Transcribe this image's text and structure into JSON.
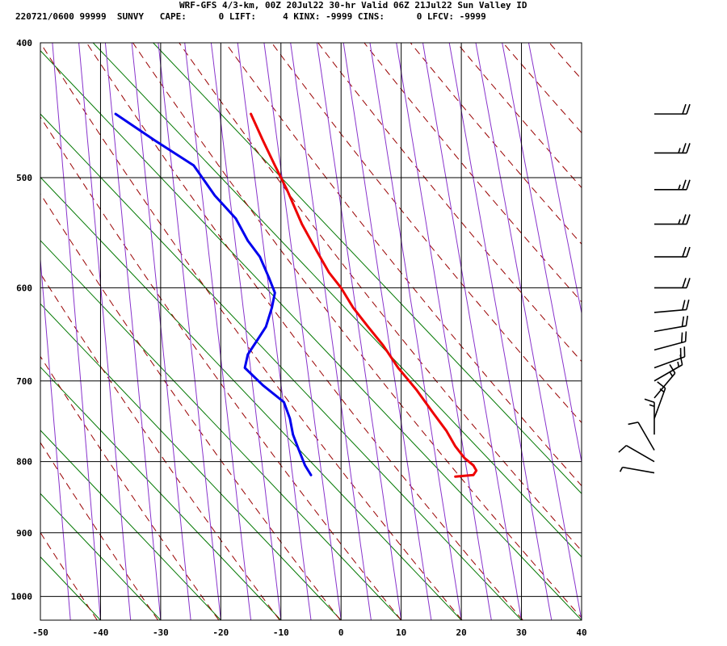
{
  "header": {
    "title_line": "WRF-GFS 4/3-km, 00Z 20Jul22 30-hr Valid 06Z 21Jul22 Sun Valley ID",
    "stats_line": "220721/0600 99999  SUNVY   CAPE:      0 LIFT:     4 KINX: -9999 CINS:      0 LFCV: -9999"
  },
  "chart_data": {
    "type": "line",
    "title": "WRF-GFS 4/3-km, 00Z 20Jul22 30-hr Valid 06Z 21Jul22 Sun Valley ID",
    "xlabel": "",
    "ylabel": "",
    "x_ticks": [
      "-50",
      "-40",
      "-30",
      "-20",
      "-10",
      "0",
      "10",
      "20",
      "30",
      "40"
    ],
    "y_ticks": [
      "400",
      "500",
      "600",
      "700",
      "800",
      "900",
      "1000"
    ],
    "xlim": [
      -50,
      40
    ],
    "ylim": [
      1040,
      400
    ],
    "y_scale": "log",
    "grid": true,
    "colors": {
      "temperature": "#ee0000",
      "dewpoint": "#0000ee",
      "dry_adiabat": "#990000",
      "moist_adiabat": "#8833cc",
      "isotherm_green": "#007700",
      "grid": "#000000"
    },
    "series": [
      {
        "key": "temperature",
        "points": [
          [
            -15,
            450
          ],
          [
            -13,
            470
          ],
          [
            -11,
            490
          ],
          [
            -9,
            510
          ],
          [
            -6.5,
            540
          ],
          [
            -4,
            565
          ],
          [
            -2,
            585
          ],
          [
            0,
            600
          ],
          [
            2,
            620
          ],
          [
            4.5,
            640
          ],
          [
            7,
            660
          ],
          [
            9.5,
            685
          ],
          [
            12.5,
            710
          ],
          [
            15.5,
            740
          ],
          [
            17.5,
            760
          ],
          [
            19,
            780
          ],
          [
            20.5,
            795
          ],
          [
            22,
            805
          ],
          [
            22.5,
            812
          ],
          [
            22,
            818
          ],
          [
            19,
            820
          ]
        ]
      },
      {
        "key": "dewpoint",
        "points": [
          [
            -37.5,
            450
          ],
          [
            -31,
            470
          ],
          [
            -24.5,
            490
          ],
          [
            -21,
            515
          ],
          [
            -17.5,
            535
          ],
          [
            -15.5,
            555
          ],
          [
            -13.5,
            570
          ],
          [
            -12,
            590
          ],
          [
            -11,
            605
          ],
          [
            -11.5,
            620
          ],
          [
            -12.5,
            640
          ],
          [
            -14,
            655
          ],
          [
            -15.5,
            670
          ],
          [
            -16,
            685
          ],
          [
            -13,
            705
          ],
          [
            -9.5,
            725
          ],
          [
            -8.5,
            745
          ],
          [
            -8,
            765
          ],
          [
            -7,
            785
          ],
          [
            -6,
            805
          ],
          [
            -5,
            818
          ]
        ]
      }
    ],
    "winds": [
      {
        "p": 450,
        "dir": 270,
        "kt": 20
      },
      {
        "p": 480,
        "dir": 270,
        "kt": 25
      },
      {
        "p": 510,
        "dir": 270,
        "kt": 25
      },
      {
        "p": 540,
        "dir": 270,
        "kt": 25
      },
      {
        "p": 570,
        "dir": 270,
        "kt": 20
      },
      {
        "p": 600,
        "dir": 270,
        "kt": 20
      },
      {
        "p": 625,
        "dir": 265,
        "kt": 20
      },
      {
        "p": 645,
        "dir": 260,
        "kt": 20
      },
      {
        "p": 665,
        "dir": 255,
        "kt": 20
      },
      {
        "p": 685,
        "dir": 250,
        "kt": 20
      },
      {
        "p": 700,
        "dir": 240,
        "kt": 15
      },
      {
        "p": 720,
        "dir": 220,
        "kt": 15
      },
      {
        "p": 745,
        "dir": 200,
        "kt": 15
      },
      {
        "p": 765,
        "dir": 180,
        "kt": 15
      },
      {
        "p": 785,
        "dir": 150,
        "kt": 10
      },
      {
        "p": 800,
        "dir": 120,
        "kt": 10
      },
      {
        "p": 815,
        "dir": 100,
        "kt": 5
      }
    ]
  }
}
